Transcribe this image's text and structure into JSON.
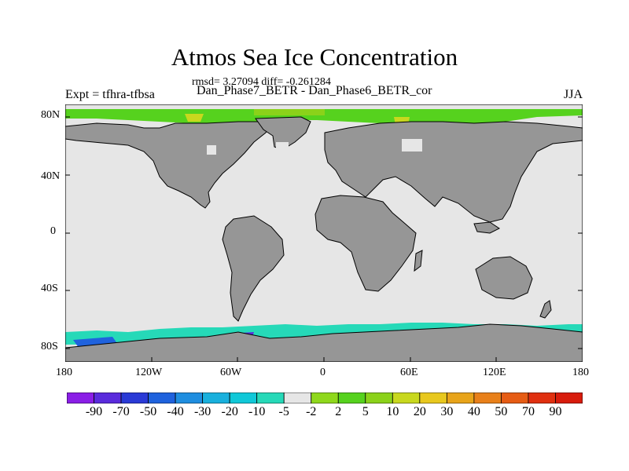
{
  "figure": {
    "title": "Atmos Sea Ice Concentration",
    "stats": "rmsd= 3.27094 diff= -0.261284",
    "subtitle": "Dan_Phase7_BETR - Dan_Phase6_BETR_cor",
    "left_label": "Expt = tfhra-tfbsa",
    "right_label": "JJA"
  },
  "axes": {
    "lat_ticks": [
      "80N",
      "40N",
      "0",
      "40S",
      "80S"
    ],
    "lon_ticks": [
      "180",
      "120W",
      "60W",
      "0",
      "60E",
      "120E",
      "180"
    ]
  },
  "colorbar": {
    "labels": [
      "-90",
      "-70",
      "-50",
      "-40",
      "-30",
      "-20",
      "-10",
      "-5",
      "-2",
      "2",
      "5",
      "10",
      "20",
      "30",
      "40",
      "50",
      "70",
      "90"
    ],
    "colors": [
      "#8a1ee6",
      "#5a2bdc",
      "#2a3ad6",
      "#1f62dd",
      "#1f8ee0",
      "#19b0dd",
      "#10c8d8",
      "#26d9b8",
      "#e6e6e6",
      "#8fd81c",
      "#56d21e",
      "#8bd21a",
      "#c8d81e",
      "#e8c81e",
      "#e8a41a",
      "#e8801a",
      "#e65c14",
      "#e03010",
      "#d81c0c"
    ]
  },
  "colors": {
    "land": "#969696",
    "ocean": "#e6e6e6",
    "coast": "#000000"
  }
}
